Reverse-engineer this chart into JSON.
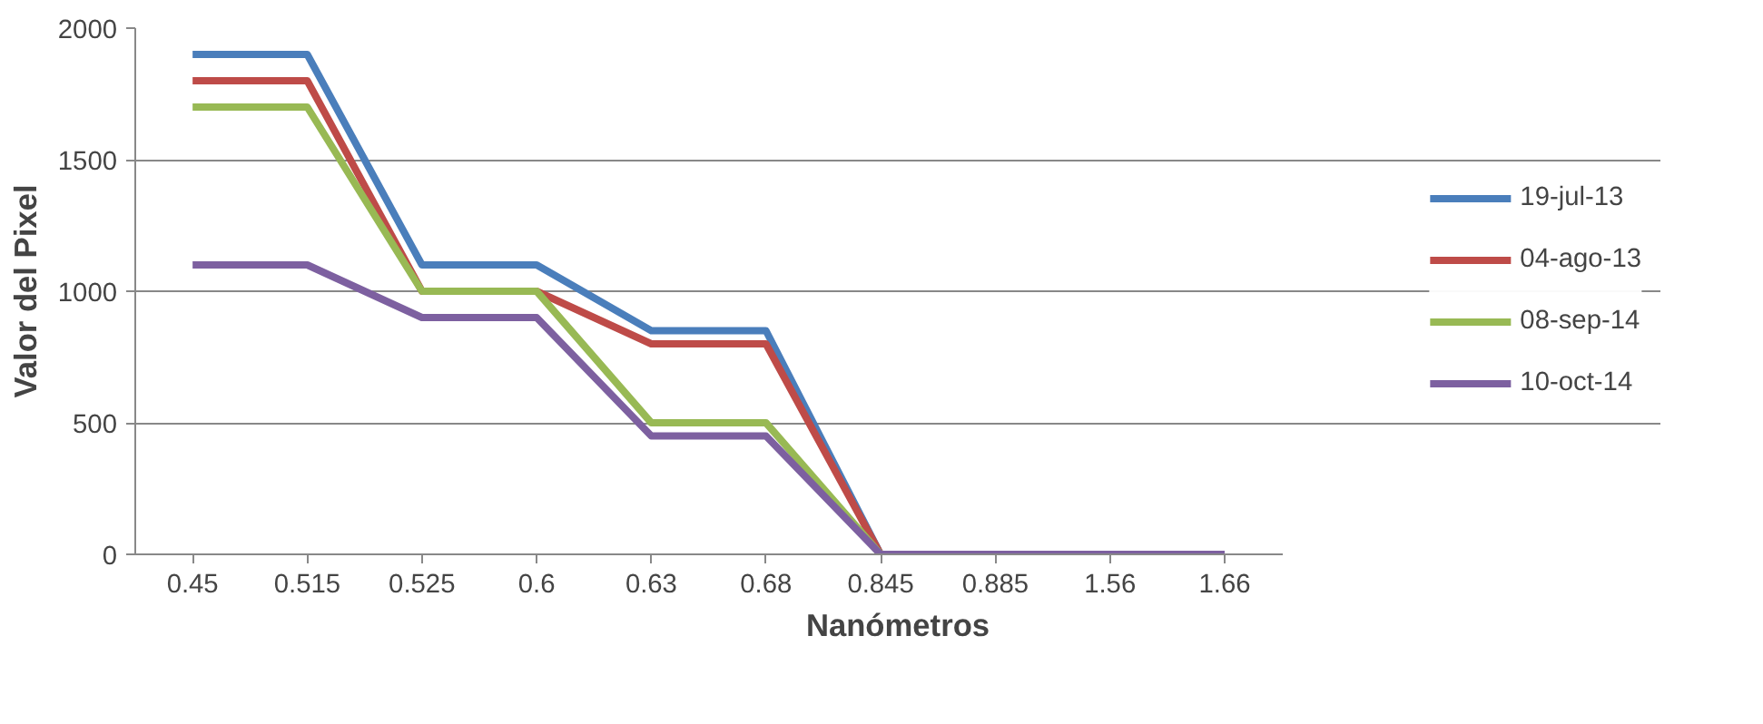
{
  "chart_data": {
    "type": "line",
    "xlabel": "Nanómetros",
    "ylabel": "Valor del Pixel",
    "categories": [
      "0.45",
      "0.515",
      "0.525",
      "0.6",
      "0.63",
      "0.68",
      "0.845",
      "0.885",
      "1.56",
      "1.66"
    ],
    "series": [
      {
        "name": "19-jul-13",
        "color": "#4a7ebb",
        "values": [
          1900,
          1900,
          1100,
          1100,
          850,
          850,
          0,
          0,
          null,
          null
        ]
      },
      {
        "name": "04-ago-13",
        "color": "#be4b48",
        "values": [
          1800,
          1800,
          1000,
          1000,
          800,
          800,
          0,
          0,
          null,
          null
        ]
      },
      {
        "name": "08-sep-14",
        "color": "#98b954",
        "values": [
          1700,
          1700,
          1000,
          1000,
          500,
          500,
          0,
          0,
          null,
          null
        ]
      },
      {
        "name": "10-oct-14",
        "color": "#7d60a0",
        "values": [
          1100,
          1100,
          900,
          900,
          450,
          450,
          0,
          0,
          0,
          0
        ]
      }
    ],
    "ylim": [
      0,
      2000
    ],
    "yticks": [
      0,
      500,
      1000,
      1500,
      2000
    ],
    "grid": "y",
    "legend": "right",
    "line_style": "solid",
    "marker": "none"
  }
}
